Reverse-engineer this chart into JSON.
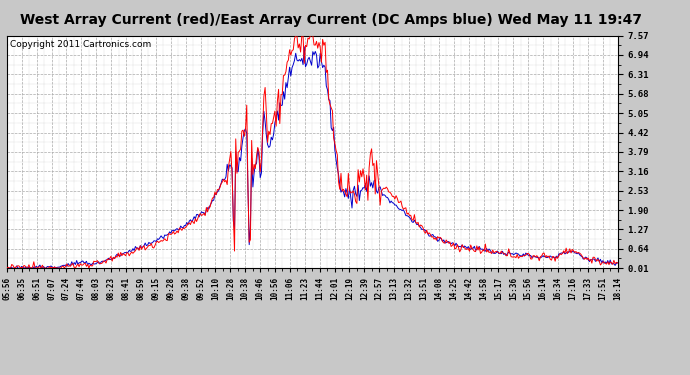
{
  "title": "West Array Current (red)/East Array Current (DC Amps blue) Wed May 11 19:47",
  "copyright": "Copyright 2011 Cartronics.com",
  "ylabel_right_values": [
    7.57,
    6.94,
    6.31,
    5.68,
    5.05,
    4.42,
    3.79,
    3.16,
    2.53,
    1.9,
    1.27,
    0.64,
    0.01
  ],
  "ymin": 0.01,
  "ymax": 7.57,
  "x_labels": [
    "05:56",
    "06:35",
    "06:51",
    "07:07",
    "07:24",
    "07:44",
    "08:03",
    "08:23",
    "08:41",
    "08:59",
    "09:15",
    "09:28",
    "09:38",
    "09:52",
    "10:10",
    "10:28",
    "10:38",
    "10:46",
    "10:56",
    "11:06",
    "11:23",
    "11:44",
    "12:01",
    "12:19",
    "12:39",
    "12:57",
    "13:13",
    "13:32",
    "13:51",
    "14:08",
    "14:25",
    "14:42",
    "14:58",
    "15:17",
    "15:36",
    "15:56",
    "16:14",
    "16:34",
    "17:16",
    "17:33",
    "17:51",
    "18:14"
  ],
  "background_color": "#c8c8c8",
  "plot_bg_color": "#ffffff",
  "grid_color": "#aaaaaa",
  "line_color_red": "#ff0000",
  "line_color_blue": "#0000cc",
  "title_fontsize": 10,
  "copyright_fontsize": 6.5
}
